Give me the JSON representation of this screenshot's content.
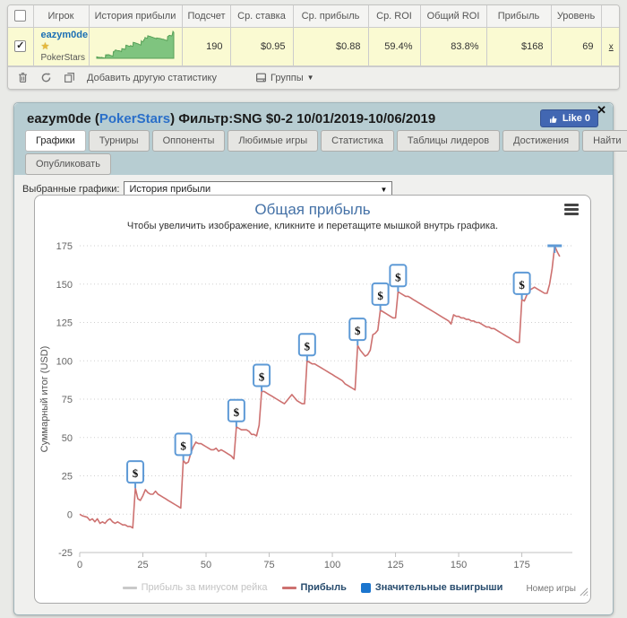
{
  "glyphs": {
    "check": "✓",
    "close": "✕",
    "star": "★",
    "caret_down": "▼"
  },
  "stats_widget": {
    "columns": [
      "Игрок",
      "История прибыли",
      "Подсчет",
      "Ср. ставка",
      "Ср. прибыль",
      "Ср. ROI",
      "Общий ROI",
      "Прибыль",
      "Уровень"
    ],
    "row": {
      "player": "eazym0de",
      "site": "PokerStars",
      "count": "190",
      "avg_stake": "$0.95",
      "avg_profit": "$0.88",
      "avg_roi": "59.4%",
      "total_roi": "83.8%",
      "profit": "$168",
      "level": "69",
      "remove_label": "x"
    },
    "toolbar": {
      "add_label": "Добавить другую статистику",
      "groups_label": "Группы"
    }
  },
  "panel": {
    "title_prefix": "eazym0de (",
    "title_site": "PokerStars",
    "title_suffix": ") Фильтр:SNG $0-2 10/01/2019-10/06/2019",
    "like_label": "Like 0",
    "tabs": [
      {
        "id": "charts",
        "label": "Графики",
        "active": true
      },
      {
        "id": "tournaments",
        "label": "Турниры",
        "active": false
      },
      {
        "id": "opponents",
        "label": "Оппоненты",
        "active": false
      },
      {
        "id": "favorite-games",
        "label": "Любимые игры",
        "active": false
      },
      {
        "id": "statistics",
        "label": "Статистика",
        "active": false
      },
      {
        "id": "leaderboards",
        "label": "Таблицы лидеров",
        "active": false
      },
      {
        "id": "achievements",
        "label": "Достижения",
        "active": false
      },
      {
        "id": "find",
        "label": "Найти",
        "active": false
      }
    ],
    "tabs_row2": [
      {
        "id": "publish",
        "label": "Опубликовать",
        "active": false
      }
    ],
    "select_label": "Выбранные графики:",
    "select_value": "История прибыли"
  },
  "chart_data": {
    "type": "line",
    "title": "Общая прибыль",
    "subtitle": "Чтобы увеличить изображение, кликните и перетащите мышкой внутрь графика.",
    "ylabel": "Суммарный итог (USD)",
    "xlabel": "Номер игры",
    "ylim": [
      -25,
      175
    ],
    "xlim": [
      0,
      195
    ],
    "yticks": [
      -25,
      0,
      25,
      50,
      75,
      100,
      125,
      150,
      175
    ],
    "xticks": [
      0,
      25,
      50,
      75,
      100,
      125,
      150,
      175
    ],
    "grid": "dotted",
    "legend_position": "bottom-center",
    "legend": [
      {
        "name": "Прибыль за минусом рейка",
        "color": "#c9c9c9",
        "swatch": "line",
        "disabled": true
      },
      {
        "name": "Прибыль",
        "color": "#cd7170",
        "swatch": "line",
        "disabled": false
      },
      {
        "name": "Значительные выигрыши",
        "color": "#1b75ce",
        "swatch": "square",
        "disabled": false
      }
    ],
    "series": [
      {
        "name": "Прибыль",
        "color": "#cd7170",
        "points": [
          [
            0,
            0
          ],
          [
            1,
            -1
          ],
          [
            3,
            -2
          ],
          [
            4,
            -4
          ],
          [
            5,
            -3
          ],
          [
            6,
            -5
          ],
          [
            7,
            -3
          ],
          [
            8,
            -6
          ],
          [
            9,
            -5
          ],
          [
            10,
            -6
          ],
          [
            11,
            -4
          ],
          [
            12,
            -3
          ],
          [
            13,
            -5
          ],
          [
            14,
            -6
          ],
          [
            15,
            -5
          ],
          [
            16,
            -6
          ],
          [
            17,
            -7
          ],
          [
            18,
            -7
          ],
          [
            19,
            -8
          ],
          [
            20,
            -8
          ],
          [
            21,
            -9
          ],
          [
            22,
            17
          ],
          [
            23,
            10
          ],
          [
            24,
            9
          ],
          [
            25,
            12
          ],
          [
            26,
            16
          ],
          [
            27,
            14
          ],
          [
            28,
            13
          ],
          [
            29,
            13
          ],
          [
            30,
            15
          ],
          [
            31,
            13
          ],
          [
            32,
            12
          ],
          [
            33,
            11
          ],
          [
            34,
            10
          ],
          [
            35,
            9
          ],
          [
            36,
            8
          ],
          [
            37,
            7
          ],
          [
            38,
            6
          ],
          [
            39,
            5
          ],
          [
            40,
            4
          ],
          [
            41,
            35
          ],
          [
            42,
            33
          ],
          [
            43,
            34
          ],
          [
            44,
            40
          ],
          [
            45,
            44
          ],
          [
            46,
            47
          ],
          [
            47,
            46
          ],
          [
            48,
            46
          ],
          [
            49,
            45
          ],
          [
            50,
            44
          ],
          [
            51,
            43
          ],
          [
            52,
            42
          ],
          [
            53,
            42
          ],
          [
            54,
            43
          ],
          [
            55,
            41
          ],
          [
            56,
            42
          ],
          [
            57,
            41
          ],
          [
            58,
            40
          ],
          [
            59,
            39
          ],
          [
            60,
            38
          ],
          [
            61,
            36
          ],
          [
            62,
            57
          ],
          [
            63,
            56
          ],
          [
            64,
            55
          ],
          [
            65,
            55
          ],
          [
            66,
            55
          ],
          [
            67,
            54
          ],
          [
            68,
            52
          ],
          [
            69,
            52
          ],
          [
            70,
            51
          ],
          [
            71,
            58
          ],
          [
            72,
            80
          ],
          [
            73,
            80
          ],
          [
            74,
            79
          ],
          [
            75,
            78
          ],
          [
            76,
            77
          ],
          [
            77,
            76
          ],
          [
            78,
            75
          ],
          [
            79,
            74
          ],
          [
            80,
            73
          ],
          [
            81,
            72
          ],
          [
            82,
            74
          ],
          [
            83,
            76
          ],
          [
            84,
            78
          ],
          [
            85,
            76
          ],
          [
            86,
            74
          ],
          [
            87,
            73
          ],
          [
            88,
            72
          ],
          [
            89,
            72
          ],
          [
            90,
            100
          ],
          [
            91,
            99
          ],
          [
            92,
            98
          ],
          [
            93,
            98
          ],
          [
            94,
            97
          ],
          [
            95,
            96
          ],
          [
            96,
            95
          ],
          [
            97,
            94
          ],
          [
            98,
            93
          ],
          [
            99,
            92
          ],
          [
            100,
            91
          ],
          [
            101,
            90
          ],
          [
            102,
            89
          ],
          [
            103,
            88
          ],
          [
            104,
            87
          ],
          [
            105,
            85
          ],
          [
            106,
            84
          ],
          [
            107,
            83
          ],
          [
            108,
            82
          ],
          [
            109,
            81
          ],
          [
            110,
            110
          ],
          [
            111,
            107
          ],
          [
            112,
            105
          ],
          [
            113,
            103
          ],
          [
            114,
            104
          ],
          [
            115,
            107
          ],
          [
            116,
            117
          ],
          [
            117,
            118
          ],
          [
            118,
            120
          ],
          [
            119,
            133
          ],
          [
            120,
            132
          ],
          [
            121,
            131
          ],
          [
            122,
            130
          ],
          [
            123,
            129
          ],
          [
            124,
            128
          ],
          [
            125,
            128
          ],
          [
            126,
            145
          ],
          [
            127,
            144
          ],
          [
            128,
            143
          ],
          [
            129,
            142
          ],
          [
            130,
            142
          ],
          [
            131,
            141
          ],
          [
            132,
            140
          ],
          [
            133,
            139
          ],
          [
            134,
            138
          ],
          [
            135,
            137
          ],
          [
            136,
            136
          ],
          [
            137,
            135
          ],
          [
            138,
            134
          ],
          [
            139,
            133
          ],
          [
            140,
            132
          ],
          [
            141,
            131
          ],
          [
            142,
            130
          ],
          [
            143,
            129
          ],
          [
            144,
            128
          ],
          [
            145,
            127
          ],
          [
            146,
            126
          ],
          [
            147,
            124
          ],
          [
            148,
            130
          ],
          [
            149,
            129
          ],
          [
            150,
            129
          ],
          [
            151,
            128
          ],
          [
            152,
            128
          ],
          [
            153,
            127
          ],
          [
            154,
            127
          ],
          [
            155,
            126
          ],
          [
            156,
            126
          ],
          [
            157,
            125
          ],
          [
            158,
            125
          ],
          [
            159,
            124
          ],
          [
            160,
            123
          ],
          [
            161,
            122
          ],
          [
            162,
            122
          ],
          [
            163,
            121
          ],
          [
            164,
            121
          ],
          [
            165,
            120
          ],
          [
            166,
            119
          ],
          [
            167,
            118
          ],
          [
            168,
            117
          ],
          [
            169,
            116
          ],
          [
            170,
            115
          ],
          [
            171,
            114
          ],
          [
            172,
            113
          ],
          [
            173,
            112
          ],
          [
            174,
            112
          ],
          [
            175,
            140
          ],
          [
            176,
            139
          ],
          [
            177,
            143
          ],
          [
            178,
            146
          ],
          [
            179,
            147
          ],
          [
            180,
            148
          ],
          [
            181,
            147
          ],
          [
            182,
            146
          ],
          [
            183,
            145
          ],
          [
            184,
            144
          ],
          [
            185,
            144
          ],
          [
            186,
            150
          ],
          [
            187,
            160
          ],
          [
            188,
            175
          ],
          [
            189,
            171
          ],
          [
            190,
            168
          ]
        ]
      }
    ],
    "significant_win_markers": [
      [
        22,
        17
      ],
      [
        41,
        35
      ],
      [
        62,
        57
      ],
      [
        72,
        80
      ],
      [
        90,
        100
      ],
      [
        110,
        110
      ],
      [
        119,
        133
      ],
      [
        126,
        145
      ],
      [
        175,
        140
      ]
    ],
    "top_marker": [
      188,
      175
    ],
    "marker_border_color": "#5e9ad6",
    "title_color": "#4572a7"
  }
}
